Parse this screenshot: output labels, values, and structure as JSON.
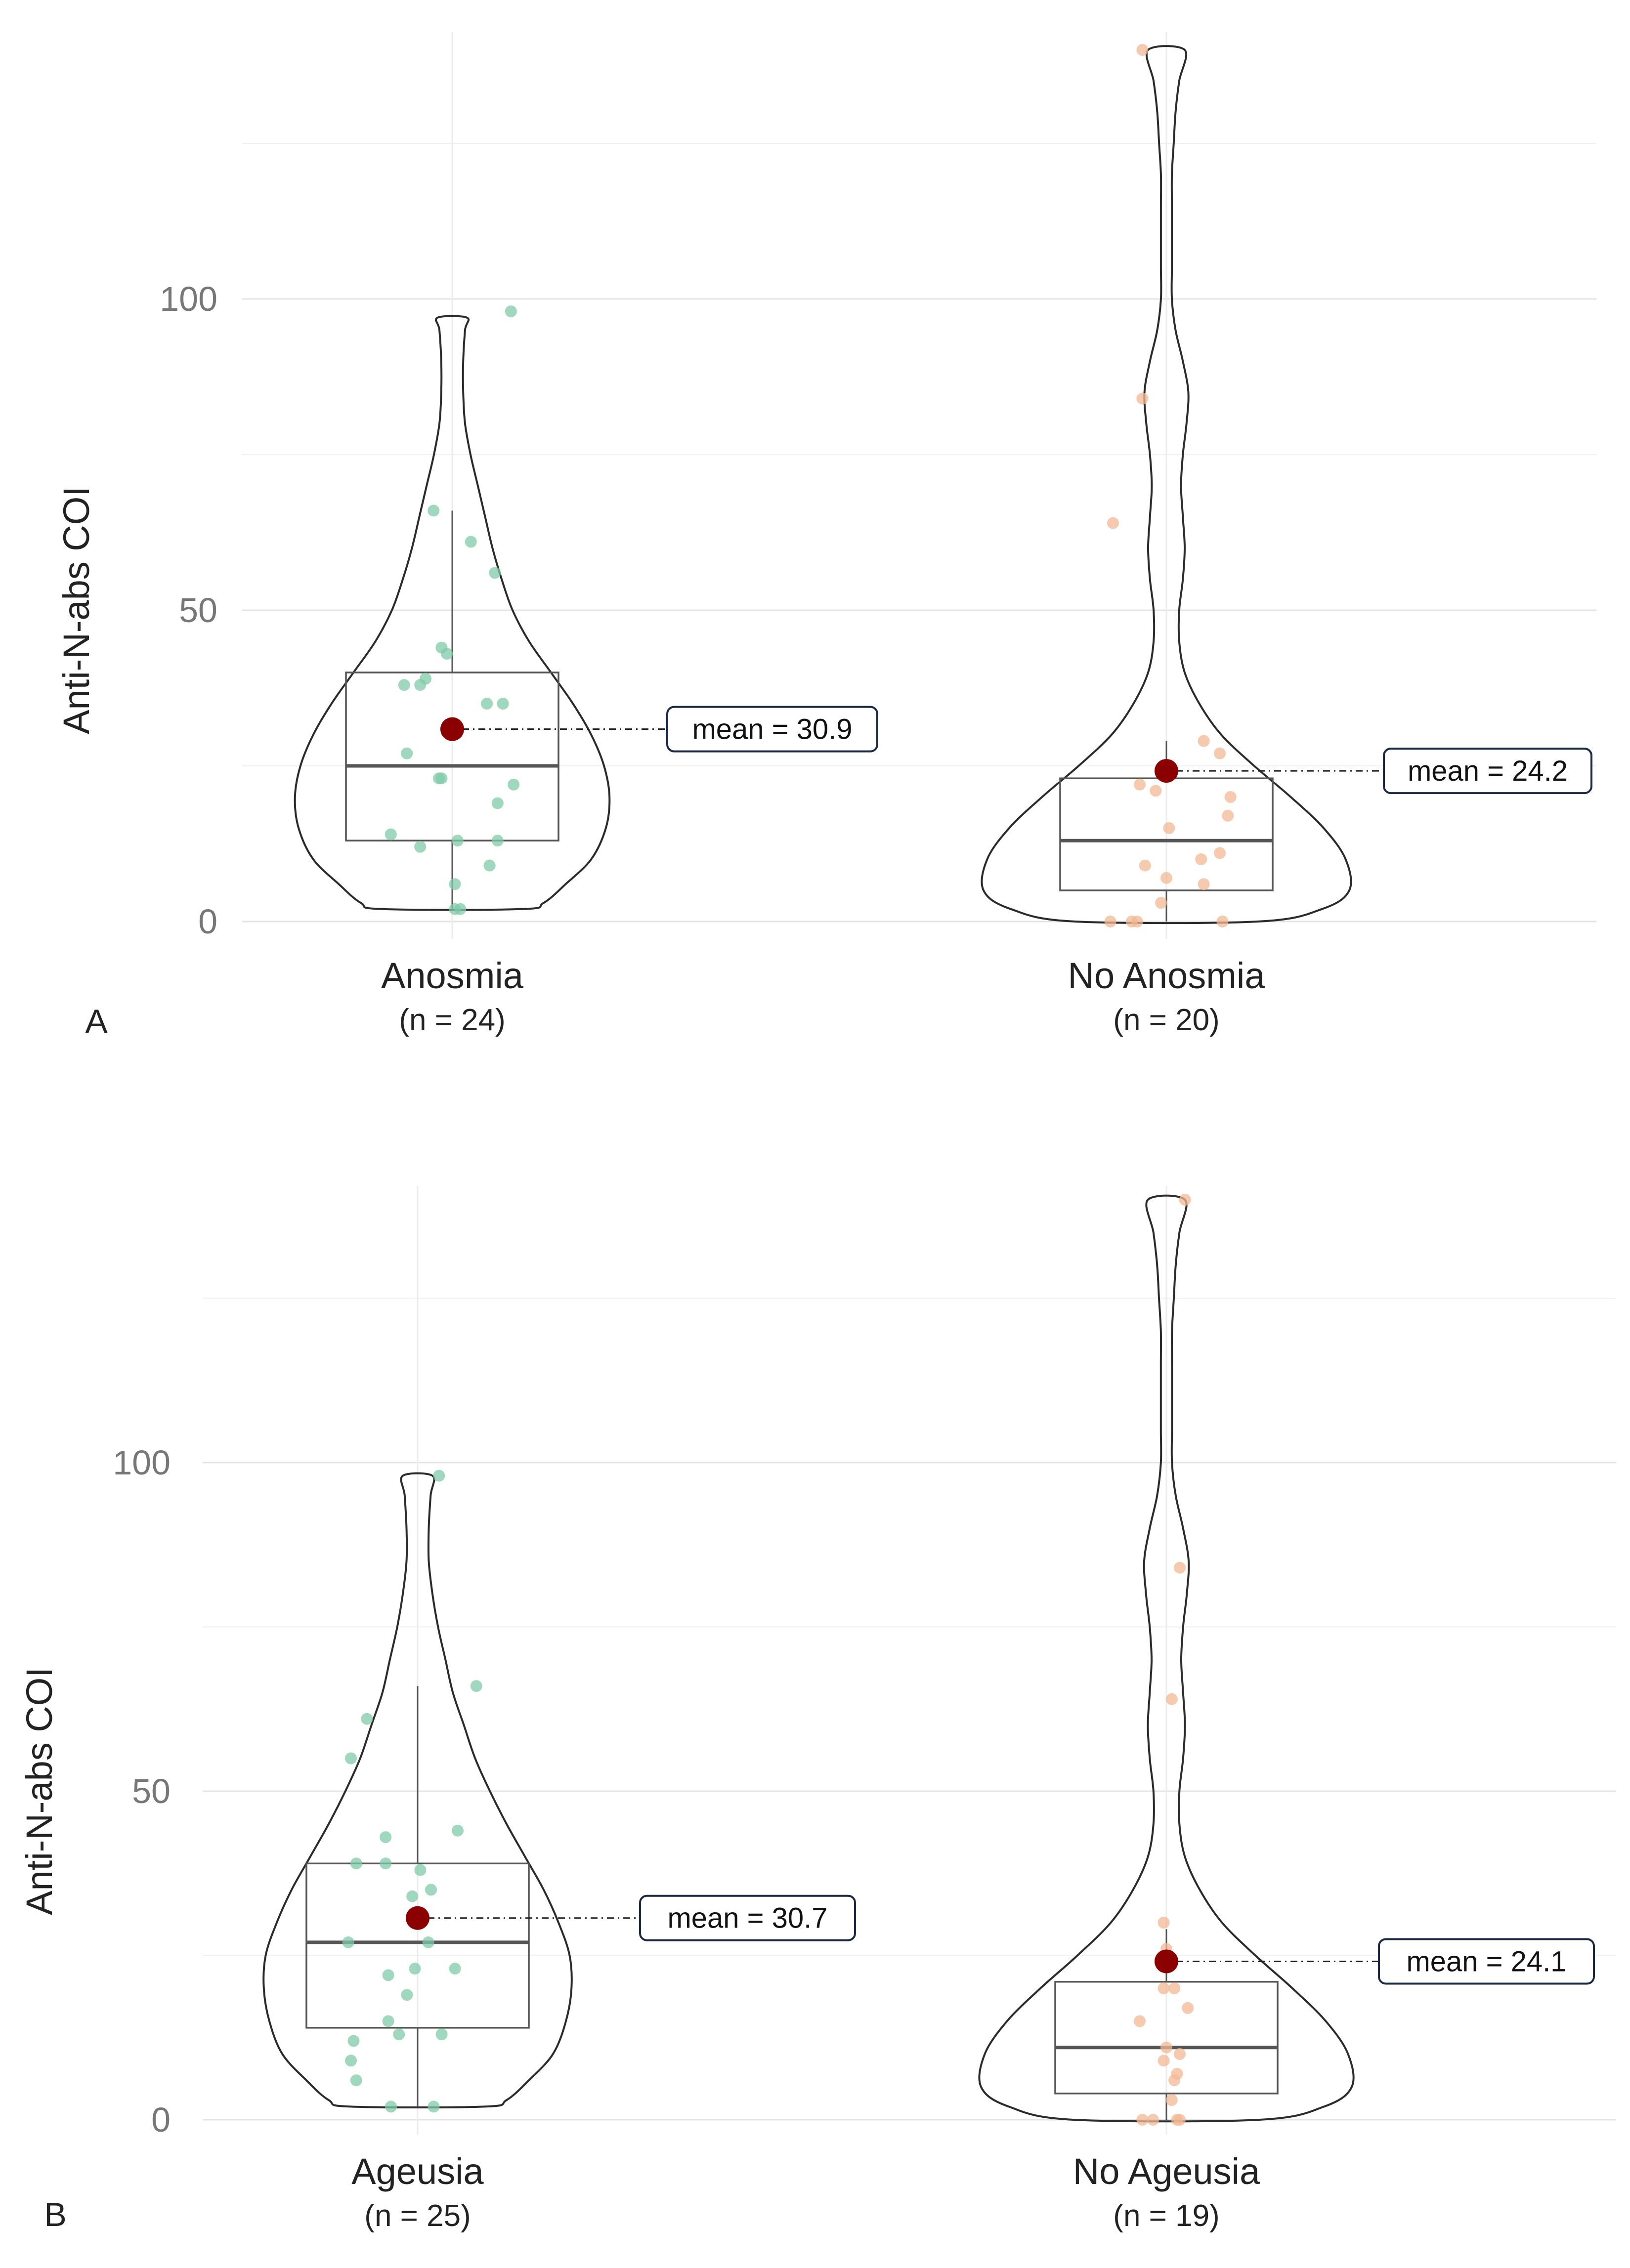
{
  "chart_data": [
    {
      "type": "violin",
      "panel_label": "A",
      "ylabel": "Anti-N-abs COI",
      "ylim": [
        -3,
        140
      ],
      "yticks": [
        0,
        50,
        100
      ],
      "grid": true,
      "groups": [
        {
          "label": "Anosmia",
          "n_label": "(n = 24)",
          "color": "#7fcaa9",
          "mean": 30.9,
          "mean_label": "mean = 30.9",
          "box": {
            "q1": 13,
            "median": 25,
            "q3": 40,
            "whisker_low": 2,
            "whisker_high": 66
          },
          "violin": {
            "y": [
              2,
              3,
              6,
              10,
              15,
              20,
              25,
              30,
              35,
              40,
              45,
              50,
              55,
              60,
              65,
              70,
              75,
              80,
              85,
              90,
              95,
              97
            ],
            "width": [
              0.38,
              0.5,
              0.62,
              0.76,
              0.84,
              0.86,
              0.83,
              0.76,
              0.66,
              0.54,
              0.42,
              0.33,
              0.27,
              0.22,
              0.18,
              0.14,
              0.1,
              0.07,
              0.06,
              0.06,
              0.07,
              0.08
            ]
          },
          "points": [
            {
              "x": -0.07,
              "y": 66
            },
            {
              "x": 0.07,
              "y": 61
            },
            {
              "x": 0.16,
              "y": 56
            },
            {
              "x": -0.04,
              "y": 44
            },
            {
              "x": -0.02,
              "y": 43
            },
            {
              "x": -0.18,
              "y": 38
            },
            {
              "x": -0.1,
              "y": 39
            },
            {
              "x": -0.12,
              "y": 38
            },
            {
              "x": 0.13,
              "y": 35
            },
            {
              "x": 0.19,
              "y": 35
            },
            {
              "x": -0.17,
              "y": 27
            },
            {
              "x": -0.04,
              "y": 23
            },
            {
              "x": -0.05,
              "y": 23
            },
            {
              "x": 0.23,
              "y": 22
            },
            {
              "x": 0.17,
              "y": 19
            },
            {
              "x": -0.23,
              "y": 14
            },
            {
              "x": 0.02,
              "y": 13
            },
            {
              "x": 0.17,
              "y": 13
            },
            {
              "x": -0.12,
              "y": 12
            },
            {
              "x": 0.14,
              "y": 9
            },
            {
              "x": 0.01,
              "y": 6
            },
            {
              "x": 0.01,
              "y": 2
            },
            {
              "x": 0.03,
              "y": 2
            },
            {
              "x": 0.22,
              "y": 98
            }
          ]
        },
        {
          "label": "No Anosmia",
          "n_label": "(n =  20)",
          "color": "#f2b894",
          "mean": 24.2,
          "mean_label": "mean = 24.2",
          "box": {
            "q1": 5,
            "median": 13,
            "q3": 23,
            "whisker_low": 0,
            "whisker_high": 29
          },
          "violin": {
            "y": [
              0,
              2,
              5,
              10,
              15,
              20,
              25,
              30,
              35,
              40,
              45,
              50,
              55,
              60,
              65,
              70,
              75,
              80,
              85,
              90,
              95,
              100,
              105,
              110,
              115,
              120,
              125,
              130,
              135,
              140
            ],
            "width": [
              0.5,
              0.85,
              1.0,
              0.98,
              0.86,
              0.68,
              0.48,
              0.3,
              0.18,
              0.1,
              0.07,
              0.07,
              0.09,
              0.1,
              0.09,
              0.08,
              0.09,
              0.11,
              0.12,
              0.09,
              0.05,
              0.03,
              0.03,
              0.03,
              0.03,
              0.03,
              0.04,
              0.05,
              0.07,
              0.1
            ]
          },
          "points": [
            {
              "x": -0.09,
              "y": 140
            },
            {
              "x": -0.09,
              "y": 84
            },
            {
              "x": -0.2,
              "y": 64
            },
            {
              "x": 0.14,
              "y": 29
            },
            {
              "x": 0.2,
              "y": 27
            },
            {
              "x": -0.1,
              "y": 22
            },
            {
              "x": -0.04,
              "y": 21
            },
            {
              "x": 0.24,
              "y": 20
            },
            {
              "x": 0.23,
              "y": 17
            },
            {
              "x": 0.01,
              "y": 15
            },
            {
              "x": 0.2,
              "y": 11
            },
            {
              "x": 0.13,
              "y": 10
            },
            {
              "x": -0.08,
              "y": 9
            },
            {
              "x": 0.0,
              "y": 7
            },
            {
              "x": 0.14,
              "y": 6
            },
            {
              "x": -0.02,
              "y": 3
            },
            {
              "x": -0.21,
              "y": 0
            },
            {
              "x": -0.13,
              "y": 0
            },
            {
              "x": -0.11,
              "y": 0
            },
            {
              "x": 0.21,
              "y": 0
            }
          ]
        }
      ]
    },
    {
      "type": "violin",
      "panel_label": "B",
      "ylabel": "Anti-N-abs COI",
      "ylim": [
        -3,
        140
      ],
      "yticks": [
        0,
        50,
        100
      ],
      "grid": true,
      "groups": [
        {
          "label": "Ageusia",
          "n_label": "(n = 25)",
          "color": "#7fcaa9",
          "mean": 30.7,
          "mean_label": "mean = 30.7",
          "box": {
            "q1": 14,
            "median": 27,
            "q3": 39,
            "whisker_low": 2,
            "whisker_high": 66
          },
          "violin": {
            "y": [
              2,
              3,
              6,
              10,
              15,
              20,
              25,
              30,
              35,
              40,
              45,
              50,
              55,
              60,
              65,
              70,
              75,
              80,
              85,
              90,
              95,
              98
            ],
            "width": [
              0.36,
              0.48,
              0.6,
              0.73,
              0.8,
              0.83,
              0.82,
              0.76,
              0.68,
              0.58,
              0.48,
              0.39,
              0.31,
              0.25,
              0.19,
              0.15,
              0.11,
              0.08,
              0.06,
              0.06,
              0.07,
              0.08
            ]
          },
          "points": [
            {
              "x": 0.08,
              "y": 98
            },
            {
              "x": 0.22,
              "y": 66
            },
            {
              "x": -0.19,
              "y": 61
            },
            {
              "x": -0.25,
              "y": 55
            },
            {
              "x": 0.15,
              "y": 44
            },
            {
              "x": -0.12,
              "y": 43
            },
            {
              "x": -0.23,
              "y": 39
            },
            {
              "x": -0.12,
              "y": 39
            },
            {
              "x": 0.01,
              "y": 38
            },
            {
              "x": 0.05,
              "y": 35
            },
            {
              "x": -0.02,
              "y": 34
            },
            {
              "x": -0.26,
              "y": 27
            },
            {
              "x": 0.04,
              "y": 27
            },
            {
              "x": 0.14,
              "y": 23
            },
            {
              "x": -0.01,
              "y": 23
            },
            {
              "x": -0.11,
              "y": 22
            },
            {
              "x": -0.04,
              "y": 19
            },
            {
              "x": -0.11,
              "y": 15
            },
            {
              "x": -0.07,
              "y": 13
            },
            {
              "x": 0.09,
              "y": 13
            },
            {
              "x": -0.24,
              "y": 12
            },
            {
              "x": -0.25,
              "y": 9
            },
            {
              "x": -0.23,
              "y": 6
            },
            {
              "x": -0.1,
              "y": 2
            },
            {
              "x": 0.06,
              "y": 2
            }
          ]
        },
        {
          "label": "No Ageusia",
          "n_label": "(n =  19)",
          "color": "#f2b894",
          "mean": 24.1,
          "mean_label": "mean = 24.1",
          "box": {
            "q1": 4,
            "median": 11,
            "q3": 21,
            "whisker_low": 0,
            "whisker_high": 29
          },
          "violin": {
            "y": [
              0,
              2,
              5,
              10,
              15,
              20,
              25,
              30,
              35,
              40,
              45,
              50,
              55,
              60,
              65,
              70,
              75,
              80,
              85,
              90,
              95,
              100,
              105,
              110,
              115,
              120,
              125,
              130,
              135,
              140
            ],
            "width": [
              0.5,
              0.85,
              1.0,
              0.98,
              0.86,
              0.68,
              0.48,
              0.3,
              0.18,
              0.1,
              0.07,
              0.07,
              0.09,
              0.1,
              0.09,
              0.08,
              0.09,
              0.11,
              0.12,
              0.09,
              0.05,
              0.03,
              0.03,
              0.03,
              0.03,
              0.03,
              0.04,
              0.05,
              0.07,
              0.1
            ]
          },
          "points": [
            {
              "x": 0.07,
              "y": 140
            },
            {
              "x": 0.05,
              "y": 84
            },
            {
              "x": 0.02,
              "y": 64
            },
            {
              "x": -0.01,
              "y": 30
            },
            {
              "x": 0.0,
              "y": 26
            },
            {
              "x": 0.03,
              "y": 20
            },
            {
              "x": -0.01,
              "y": 20
            },
            {
              "x": 0.08,
              "y": 17
            },
            {
              "x": -0.1,
              "y": 15
            },
            {
              "x": 0.0,
              "y": 11
            },
            {
              "x": 0.05,
              "y": 10
            },
            {
              "x": -0.01,
              "y": 9
            },
            {
              "x": 0.04,
              "y": 7
            },
            {
              "x": 0.03,
              "y": 6
            },
            {
              "x": 0.02,
              "y": 3
            },
            {
              "x": -0.05,
              "y": 0
            },
            {
              "x": -0.09,
              "y": 0
            },
            {
              "x": 0.04,
              "y": 0
            },
            {
              "x": 0.05,
              "y": 0
            }
          ]
        }
      ]
    }
  ]
}
